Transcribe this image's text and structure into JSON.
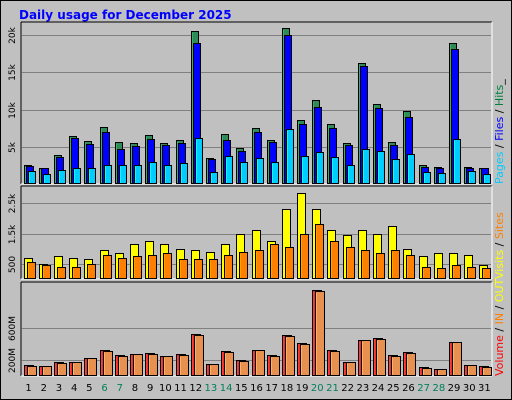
{
  "title": "Daily usage for December 2025",
  "chart_data": {
    "type": "bar",
    "categories": [
      "1",
      "2",
      "3",
      "4",
      "5",
      "6",
      "7",
      "8",
      "9",
      "10",
      "11",
      "12",
      "13",
      "14",
      "15",
      "16",
      "17",
      "18",
      "19",
      "20",
      "21",
      "22",
      "23",
      "24",
      "25",
      "26",
      "27",
      "28",
      "29",
      "30",
      "31"
    ],
    "weekend_days": [
      "6",
      "7",
      "13",
      "14",
      "20",
      "21",
      "27",
      "28"
    ],
    "panels": [
      {
        "name": "hits-files-pages",
        "ylim": [
          0,
          21500
        ],
        "yticks": [
          5000,
          10000,
          15000,
          20000
        ],
        "ytick_labels": [
          "5k",
          "10k",
          "15k",
          "20k"
        ],
        "legend": [
          {
            "text": "Pages",
            "color": "#00ccff"
          },
          {
            "text": " / ",
            "color": "#000000"
          },
          {
            "text": "Files",
            "color": "#0000ff"
          },
          {
            "text": " / ",
            "color": "#000000"
          },
          {
            "text": "Hits",
            "color": "#008040"
          },
          {
            "text": "_",
            "color": "#000000"
          }
        ],
        "series": [
          {
            "name": "Hits",
            "color": "#2e8b57",
            "values": [
              2500,
              2200,
              3900,
              6500,
              5800,
              7700,
              5600,
              5500,
              6600,
              5500,
              5900,
              20500,
              3500,
              6700,
              4900,
              7500,
              5900,
              21000,
              8600,
              11300,
              8100,
              5500,
              16200,
              10700,
              5600,
              9800,
              2500,
              2300,
              19000,
              2300,
              2200
            ]
          },
          {
            "name": "Files",
            "color": "#0000ff",
            "values": [
              2400,
              2100,
              3600,
              6200,
              5400,
              7000,
              4700,
              5100,
              6000,
              5200,
              5500,
              19000,
              3300,
              5900,
              4500,
              7000,
              5700,
              20000,
              8100,
              10300,
              7500,
              5300,
              15800,
              10200,
              5300,
              9000,
              2300,
              2200,
              18200,
              2200,
              2100
            ]
          },
          {
            "name": "Pages",
            "color": "#00ccff",
            "values": [
              1700,
              1400,
              1900,
              2100,
              2200,
              2500,
              2500,
              2500,
              2900,
              2600,
              2800,
              6200,
              1600,
              3800,
              2900,
              3500,
              3000,
              7400,
              3700,
              4300,
              3600,
              2500,
              4700,
              4500,
              3300,
              4000,
              1600,
              1500,
              6100,
              1700,
              1300
            ]
          }
        ]
      },
      {
        "name": "visits-sites",
        "ylim": [
          0,
          3000
        ],
        "yticks": [
          500,
          1500,
          2500
        ],
        "ytick_labels": [
          "500",
          "1.5k",
          "2.5k"
        ],
        "legend": [
          {
            "text": "Visits",
            "color": "#ffff00"
          },
          {
            "text": " / ",
            "color": "#000000"
          },
          {
            "text": "Sites",
            "color": "#ff8000"
          }
        ],
        "series": [
          {
            "name": "Visits",
            "color": "#ffff00",
            "values": [
              700,
              500,
              750,
              700,
              650,
              950,
              850,
              1150,
              1250,
              1150,
              1000,
              950,
              900,
              1150,
              1500,
              1600,
              1250,
              2300,
              2850,
              2300,
              1600,
              1450,
              1600,
              1500,
              1750,
              1000,
              750,
              850,
              850,
              800,
              450
            ]
          },
          {
            "name": "Sites",
            "color": "#ff8000",
            "values": [
              550,
              450,
              400,
              400,
              500,
              800,
              700,
              750,
              800,
              850,
              650,
              650,
              650,
              800,
              900,
              950,
              1150,
              1050,
              1500,
              1800,
              1250,
              1050,
              950,
              850,
              950,
              800,
              400,
              350,
              450,
              400,
              350
            ]
          }
        ]
      },
      {
        "name": "volume",
        "ylim": [
          0,
          1150
        ],
        "yticks": [
          200,
          600
        ],
        "ytick_labels": [
          "200M",
          "600M"
        ],
        "legend": [
          {
            "text": "Volume",
            "color": "#ff0000"
          },
          {
            "text": " / ",
            "color": "#000000"
          },
          {
            "text": "IN",
            "color": "#ff8000"
          },
          {
            "text": " / ",
            "color": "#000000"
          },
          {
            "text": "OUT",
            "color": "#ffff00"
          }
        ],
        "series": [
          {
            "name": "Volume",
            "color": "#e82f2f",
            "values": [
              135,
              130,
              170,
              175,
              225,
              320,
              260,
              275,
              290,
              255,
              270,
              525,
              150,
              315,
              200,
              330,
              265,
              510,
              410,
              1075,
              325,
              180,
              455,
              470,
              260,
              300,
              110,
              90,
              430,
              140,
              120
            ]
          },
          {
            "name": "IN",
            "color": "#e89050",
            "values": [
              130,
              125,
              165,
              170,
              220,
              315,
              250,
              270,
              280,
              250,
              260,
              510,
              145,
              305,
              190,
              320,
              255,
              495,
              400,
              1060,
              315,
              175,
              445,
              465,
              250,
              290,
              105,
              85,
              420,
              135,
              115
            ]
          }
        ]
      }
    ]
  }
}
